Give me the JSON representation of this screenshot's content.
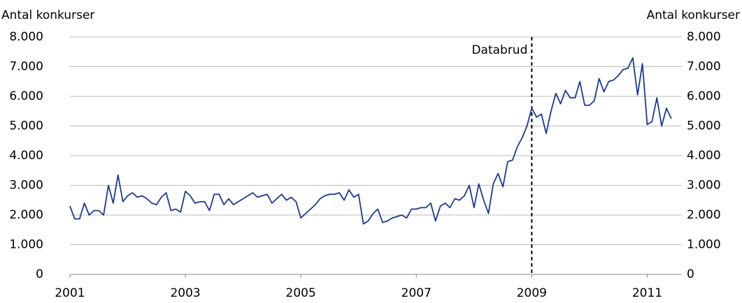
{
  "chart_data": {
    "type": "line",
    "ylabel": "Antal konkurser",
    "y2label": "Antal konkurser",
    "x": [
      2001,
      2001.083,
      2001.167,
      2001.25,
      2001.333,
      2001.417,
      2001.5,
      2001.583,
      2001.667,
      2001.75,
      2001.833,
      2001.917,
      2002,
      2002.083,
      2002.167,
      2002.25,
      2002.333,
      2002.417,
      2002.5,
      2002.583,
      2002.667,
      2002.75,
      2002.833,
      2002.917,
      2003,
      2003.083,
      2003.167,
      2003.25,
      2003.333,
      2003.417,
      2003.5,
      2003.583,
      2003.667,
      2003.75,
      2003.833,
      2003.917,
      2004,
      2004.083,
      2004.167,
      2004.25,
      2004.333,
      2004.417,
      2004.5,
      2004.583,
      2004.667,
      2004.75,
      2004.833,
      2004.917,
      2005,
      2005.083,
      2005.167,
      2005.25,
      2005.333,
      2005.417,
      2005.5,
      2005.583,
      2005.667,
      2005.75,
      2005.833,
      2005.917,
      2006,
      2006.083,
      2006.167,
      2006.25,
      2006.333,
      2006.417,
      2006.5,
      2006.583,
      2006.667,
      2006.75,
      2006.833,
      2006.917,
      2007,
      2007.083,
      2007.167,
      2007.25,
      2007.333,
      2007.417,
      2007.5,
      2007.583,
      2007.667,
      2007.75,
      2007.833,
      2007.917,
      2008,
      2008.083,
      2008.167,
      2008.25,
      2008.333,
      2008.417,
      2008.5,
      2008.583,
      2008.667,
      2008.75,
      2008.833,
      2008.917,
      2009,
      2009.083,
      2009.167,
      2009.25,
      2009.333,
      2009.417,
      2009.5,
      2009.583,
      2009.667,
      2009.75,
      2009.833,
      2009.917,
      2010,
      2010.083,
      2010.167,
      2010.25,
      2010.333,
      2010.417,
      2010.5,
      2010.583,
      2010.667,
      2010.75,
      2010.833,
      2010.917,
      2011,
      2011.083,
      2011.167,
      2011.25,
      2011.333,
      2011.417
    ],
    "series": [
      {
        "color": "#1a3a8f",
        "values": [
          2300,
          1870,
          1870,
          2400,
          2000,
          2150,
          2150,
          2000,
          3000,
          2400,
          3350,
          2450,
          2650,
          2750,
          2600,
          2650,
          2550,
          2400,
          2350,
          2600,
          2750,
          2150,
          2200,
          2100,
          2800,
          2650,
          2400,
          2450,
          2450,
          2150,
          2700,
          2700,
          2350,
          2550,
          2350,
          2450,
          2550,
          2650,
          2750,
          2600,
          2650,
          2700,
          2400,
          2550,
          2700,
          2500,
          2600,
          2450,
          1900,
          2050,
          2200,
          2350,
          2550,
          2650,
          2700,
          2700,
          2750,
          2500,
          2850,
          2600,
          2700,
          1700,
          1800,
          2050,
          2200,
          1750,
          1800,
          1900,
          1950,
          2000,
          1900,
          2200,
          2200,
          2250,
          2250,
          2400,
          1800,
          2300,
          2400,
          2250,
          2550,
          2500,
          2650,
          3000,
          2250,
          3050,
          2500,
          2050,
          3050,
          3400,
          2950,
          3800,
          3850,
          4300,
          4600,
          5000,
          5600,
          5300,
          5400,
          4750,
          5500,
          6100,
          5750,
          6200,
          5950,
          5950,
          6500,
          5700,
          5700,
          5850,
          6600,
          6150,
          6500,
          6550,
          6700,
          6900,
          6950,
          7300,
          6050,
          7100,
          5050,
          5150,
          5950,
          5000,
          5600,
          5250
        ]
      }
    ],
    "xlim": [
      2001,
      2011.6
    ],
    "xticks": [
      2001,
      2003,
      2005,
      2007,
      2009,
      2011
    ],
    "ylim": [
      0,
      8000
    ],
    "yticks": [
      0,
      {
        "value": 1000,
        "label": "1.000"
      },
      {
        "value": 2000,
        "label": "2.000"
      },
      {
        "value": 3000,
        "label": "3.000"
      },
      {
        "value": 4000,
        "label": "4.000"
      },
      {
        "value": 5000,
        "label": "5.000"
      },
      {
        "value": 6000,
        "label": "6.000"
      },
      {
        "value": 7000,
        "label": "7.000"
      },
      {
        "value": 8000,
        "label": "8.000"
      }
    ],
    "y2lim": [
      0,
      8000
    ],
    "y2ticks": [
      0,
      {
        "value": 1000,
        "label": "1.000"
      },
      {
        "value": 2000,
        "label": "2.000"
      },
      {
        "value": 3000,
        "label": "3.000"
      },
      {
        "value": 4000,
        "label": "4.000"
      },
      {
        "value": 5000,
        "label": "5.000"
      },
      {
        "value": 6000,
        "label": "6.000"
      },
      {
        "value": 7000,
        "label": "7.000"
      },
      {
        "value": 8000,
        "label": "8.000"
      }
    ],
    "grid": true,
    "annotations": [
      {
        "text": "Databrud",
        "x": 2009
      }
    ]
  }
}
